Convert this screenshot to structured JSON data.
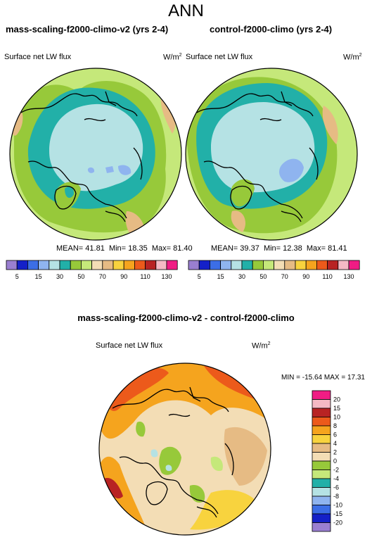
{
  "figure_title": "ANN",
  "panels": [
    {
      "title": "mass-scaling-f2000-climo-v2 (yrs 2-4)",
      "variable": "Surface net LW flux",
      "units": "W/m",
      "units_sup": "2",
      "stats": {
        "mean_label": "MEAN=",
        "mean": "41.81",
        "min_label": "Min=",
        "min": "18.35",
        "max_label": "Max=",
        "max": "81.40"
      }
    },
    {
      "title": "control-f2000-climo (yrs 2-4)",
      "variable": "Surface net LW flux",
      "units": "W/m",
      "units_sup": "2",
      "stats": {
        "mean_label": "MEAN=",
        "mean": "39.37",
        "min_label": "Min=",
        "min": "12.38",
        "max_label": "Max=",
        "max": "81.41"
      }
    },
    {
      "title": "mass-scaling-f2000-climo-v2 - control-f2000-climo",
      "variable": "Surface net LW flux",
      "units": "W/m",
      "units_sup": "2",
      "stats": {
        "min_label": "MIN =",
        "min": "-15.64",
        "max_label": "MAX =",
        "max": "17.31"
      }
    }
  ],
  "colorbar_abs": {
    "labels": [
      "5",
      "15",
      "30",
      "50",
      "70",
      "90",
      "110",
      "130"
    ],
    "colors": [
      "#9a7fd1",
      "#1420c8",
      "#3c6ee6",
      "#8fb4ef",
      "#b5e2e4",
      "#22b0a8",
      "#97c93a",
      "#c5e87a",
      "#f3ddb5",
      "#e6bb84",
      "#f8d33e",
      "#f5a41e",
      "#ec5a1b",
      "#b82323",
      "#f5b9c4",
      "#f01c84"
    ]
  },
  "colorbar_diff": {
    "labels": [
      "20",
      "15",
      "10",
      "8",
      "6",
      "4",
      "2",
      "0",
      "-2",
      "-4",
      "-6",
      "-8",
      "-10",
      "-15",
      "-20"
    ],
    "colors": [
      "#f01c84",
      "#f5b9c4",
      "#b82323",
      "#ec5a1b",
      "#f5a41e",
      "#f8d33e",
      "#e6bb84",
      "#f3ddb5",
      "#97c93a",
      "#c5e87a",
      "#22b0a8",
      "#b5e2e4",
      "#8fb4ef",
      "#3c6ee6",
      "#1420c8",
      "#9a7fd1"
    ]
  },
  "chart_data": [
    {
      "type": "heatmap",
      "title": "mass-scaling-f2000-climo-v2 (yrs 2-4)",
      "field": "Surface net LW flux",
      "projection": "north polar stereographic",
      "levels": [
        5,
        10,
        15,
        20,
        25,
        30,
        40,
        50,
        60,
        70,
        80,
        90,
        100,
        110,
        120,
        130
      ],
      "mean": 41.81,
      "min": 18.35,
      "max": 81.4
    },
    {
      "type": "heatmap",
      "title": "control-f2000-climo (yrs 2-4)",
      "field": "Surface net LW flux",
      "projection": "north polar stereographic",
      "levels": [
        5,
        10,
        15,
        20,
        25,
        30,
        40,
        50,
        60,
        70,
        80,
        90,
        100,
        110,
        120,
        130
      ],
      "mean": 39.37,
      "min": 12.38,
      "max": 81.41
    },
    {
      "type": "heatmap",
      "title": "mass-scaling-f2000-climo-v2 - control-f2000-climo",
      "field": "Surface net LW flux",
      "projection": "north polar stereographic",
      "levels": [
        -20,
        -15,
        -10,
        -8,
        -6,
        -4,
        -2,
        0,
        2,
        4,
        6,
        8,
        10,
        15,
        20
      ],
      "min": -15.64,
      "max": 17.31
    }
  ]
}
